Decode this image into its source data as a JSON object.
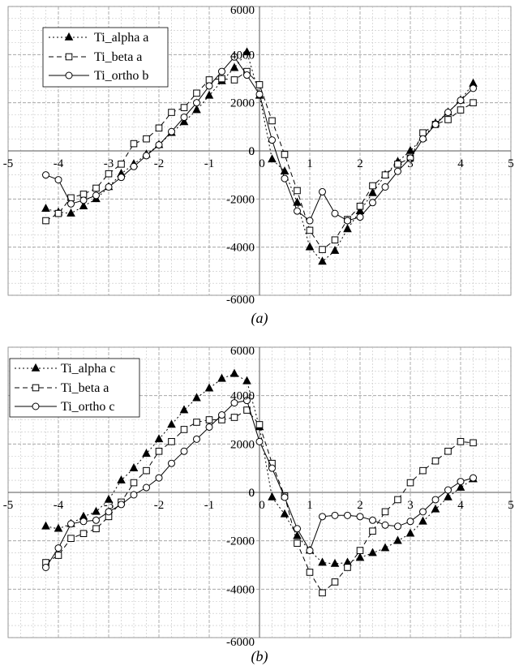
{
  "charts": [
    {
      "id": "a",
      "caption": "(a)",
      "xlim": [
        -5,
        5
      ],
      "ylim": [
        -6000,
        6000
      ],
      "x_ticks": [
        -5,
        -4,
        -3,
        -2,
        -1,
        0,
        1,
        2,
        3,
        4,
        5
      ],
      "y_ticks": [
        -6000,
        -4000,
        -2000,
        0,
        2000,
        4000,
        6000
      ],
      "series": [
        {
          "name": "Ti_alpha a",
          "marker": "triangle",
          "dash": "2,3"
        },
        {
          "name": "Ti_beta a",
          "marker": "square",
          "dash": "6,4"
        },
        {
          "name": "Ti_ortho b",
          "marker": "circle",
          "dash": ""
        }
      ]
    },
    {
      "id": "b",
      "caption": "(b)",
      "xlim": [
        -5,
        5
      ],
      "ylim": [
        -6000,
        6000
      ],
      "x_ticks": [
        -5,
        -4,
        -3,
        -2,
        -1,
        0,
        1,
        2,
        3,
        4,
        5
      ],
      "y_ticks": [
        -6000,
        -4000,
        -2000,
        0,
        2000,
        4000,
        6000
      ],
      "series": [
        {
          "name": "Ti_alpha c",
          "marker": "triangle",
          "dash": "2,3"
        },
        {
          "name": "Ti_beta a",
          "marker": "square",
          "dash": "6,4"
        },
        {
          "name": "Ti_ortho c",
          "marker": "circle",
          "dash": ""
        }
      ]
    }
  ],
  "chart_data": [
    {
      "type": "line",
      "xlim": [
        -5,
        5
      ],
      "ylim": [
        -6000,
        6000
      ],
      "grid": true,
      "legend_position": "top-left",
      "series": [
        {
          "name": "Ti_alpha a",
          "x": [
            -4.25,
            -4.0,
            -3.75,
            -3.5,
            -3.25,
            -3.0,
            -2.75,
            -2.5,
            -2.25,
            -2.0,
            -1.75,
            -1.5,
            -1.25,
            -1.0,
            -0.75,
            -0.5,
            -0.25,
            0.0,
            0.25,
            0.5,
            0.75,
            1.0,
            1.25,
            1.5,
            1.75,
            2.0,
            2.25,
            2.5,
            2.75,
            3.0,
            3.25,
            3.5,
            3.75,
            4.0,
            4.25
          ],
          "y": [
            -2400,
            -2550,
            -2600,
            -2300,
            -2000,
            -1500,
            -950,
            -550,
            -150,
            250,
            750,
            1200,
            1700,
            2300,
            2900,
            3450,
            4100,
            2300,
            -350,
            -850,
            -2150,
            -4000,
            -4600,
            -4150,
            -3250,
            -2500,
            -1750,
            -1000,
            -450,
            0,
            550,
            1150,
            1600,
            2100,
            2800
          ]
        },
        {
          "name": "Ti_beta a",
          "x": [
            -4.25,
            -4.0,
            -3.75,
            -3.5,
            -3.25,
            -3.0,
            -2.75,
            -2.5,
            -2.25,
            -2.0,
            -1.75,
            -1.5,
            -1.25,
            -1.0,
            -0.75,
            -0.5,
            -0.25,
            0.0,
            0.25,
            0.5,
            0.75,
            1.0,
            1.25,
            1.5,
            1.75,
            2.0,
            2.25,
            2.5,
            2.75,
            3.0,
            3.25,
            3.5,
            3.75,
            4.0,
            4.25
          ],
          "y": [
            -2900,
            -2600,
            -1950,
            -1800,
            -1550,
            -950,
            -550,
            300,
            500,
            950,
            1600,
            1800,
            2400,
            2950,
            3000,
            2950,
            3300,
            2750,
            1250,
            -150,
            -1650,
            -3300,
            -4100,
            -3700,
            -2850,
            -2300,
            -1450,
            -1000,
            -550,
            -300,
            750,
            1100,
            1300,
            1700,
            2000
          ]
        },
        {
          "name": "Ti_ortho b",
          "x": [
            -4.25,
            -4.0,
            -3.75,
            -3.5,
            -3.25,
            -3.0,
            -2.75,
            -2.5,
            -2.25,
            -2.0,
            -1.75,
            -1.5,
            -1.25,
            -1.0,
            -0.75,
            -0.5,
            -0.25,
            0.0,
            0.25,
            0.5,
            0.75,
            1.0,
            1.25,
            1.5,
            1.75,
            2.0,
            2.25,
            2.5,
            2.75,
            3.0,
            3.25,
            3.5,
            3.75,
            4.0,
            4.25
          ],
          "y": [
            -1000,
            -1200,
            -2200,
            -2050,
            -1850,
            -1500,
            -1100,
            -650,
            -200,
            250,
            800,
            1400,
            2000,
            2700,
            3300,
            3900,
            3150,
            2350,
            450,
            -1150,
            -2500,
            -2900,
            -1700,
            -2600,
            -2900,
            -2750,
            -2150,
            -1500,
            -850,
            -300,
            500,
            1100,
            1600,
            2100,
            2600
          ]
        }
      ]
    },
    {
      "type": "line",
      "xlim": [
        -5,
        5
      ],
      "ylim": [
        -6000,
        6000
      ],
      "grid": true,
      "legend_position": "top-left",
      "series": [
        {
          "name": "Ti_alpha c",
          "x": [
            -4.25,
            -4.0,
            -3.75,
            -3.5,
            -3.25,
            -3.0,
            -2.75,
            -2.5,
            -2.25,
            -2.0,
            -1.75,
            -1.5,
            -1.25,
            -1.0,
            -0.75,
            -0.5,
            -0.25,
            0.0,
            0.25,
            0.5,
            0.75,
            1.0,
            1.25,
            1.5,
            1.75,
            2.0,
            2.25,
            2.5,
            2.75,
            3.0,
            3.25,
            3.5,
            3.75,
            4.0,
            4.25
          ],
          "y": [
            -1400,
            -1500,
            -1300,
            -1000,
            -800,
            -300,
            500,
            1000,
            1600,
            2200,
            2800,
            3400,
            3900,
            4300,
            4700,
            4900,
            4600,
            2700,
            -200,
            -900,
            -1800,
            -2400,
            -2900,
            -2950,
            -2900,
            -2700,
            -2500,
            -2300,
            -2000,
            -1700,
            -1200,
            -700,
            -200,
            200,
            550
          ]
        },
        {
          "name": "Ti_beta a",
          "x": [
            -4.25,
            -4.0,
            -3.75,
            -3.5,
            -3.25,
            -3.0,
            -2.75,
            -2.5,
            -2.25,
            -2.0,
            -1.75,
            -1.5,
            -1.25,
            -1.0,
            -0.75,
            -0.5,
            -0.25,
            0.0,
            0.25,
            0.5,
            0.75,
            1.0,
            1.25,
            1.5,
            1.75,
            2.0,
            2.25,
            2.5,
            2.75,
            3.0,
            3.25,
            3.5,
            3.75,
            4.0,
            4.25
          ],
          "y": [
            -2900,
            -2600,
            -1900,
            -1700,
            -1500,
            -1000,
            -400,
            400,
            900,
            1700,
            2100,
            2600,
            2900,
            3000,
            3000,
            3100,
            3400,
            2800,
            1200,
            -150,
            -2100,
            -3300,
            -4150,
            -3700,
            -3100,
            -2400,
            -1600,
            -800,
            -300,
            400,
            900,
            1300,
            1700,
            2100,
            2050
          ]
        },
        {
          "name": "Ti_ortho c",
          "x": [
            -4.25,
            -4.0,
            -3.75,
            -3.5,
            -3.25,
            -3.0,
            -2.75,
            -2.5,
            -2.25,
            -2.0,
            -1.75,
            -1.5,
            -1.25,
            -1.0,
            -0.75,
            -0.5,
            -0.25,
            0.0,
            0.25,
            0.5,
            0.75,
            1.0,
            1.25,
            1.5,
            1.75,
            2.0,
            2.25,
            2.5,
            2.75,
            3.0,
            3.25,
            3.5,
            3.75,
            4.0,
            4.25
          ],
          "y": [
            -3100,
            -2300,
            -1300,
            -1200,
            -1150,
            -800,
            -500,
            -100,
            200,
            600,
            1200,
            1700,
            2200,
            2700,
            3200,
            3700,
            3800,
            2100,
            1000,
            -200,
            -1500,
            -2400,
            -1000,
            -950,
            -950,
            -1000,
            -1150,
            -1350,
            -1400,
            -1200,
            -800,
            -300,
            100,
            450,
            600
          ]
        }
      ]
    }
  ]
}
